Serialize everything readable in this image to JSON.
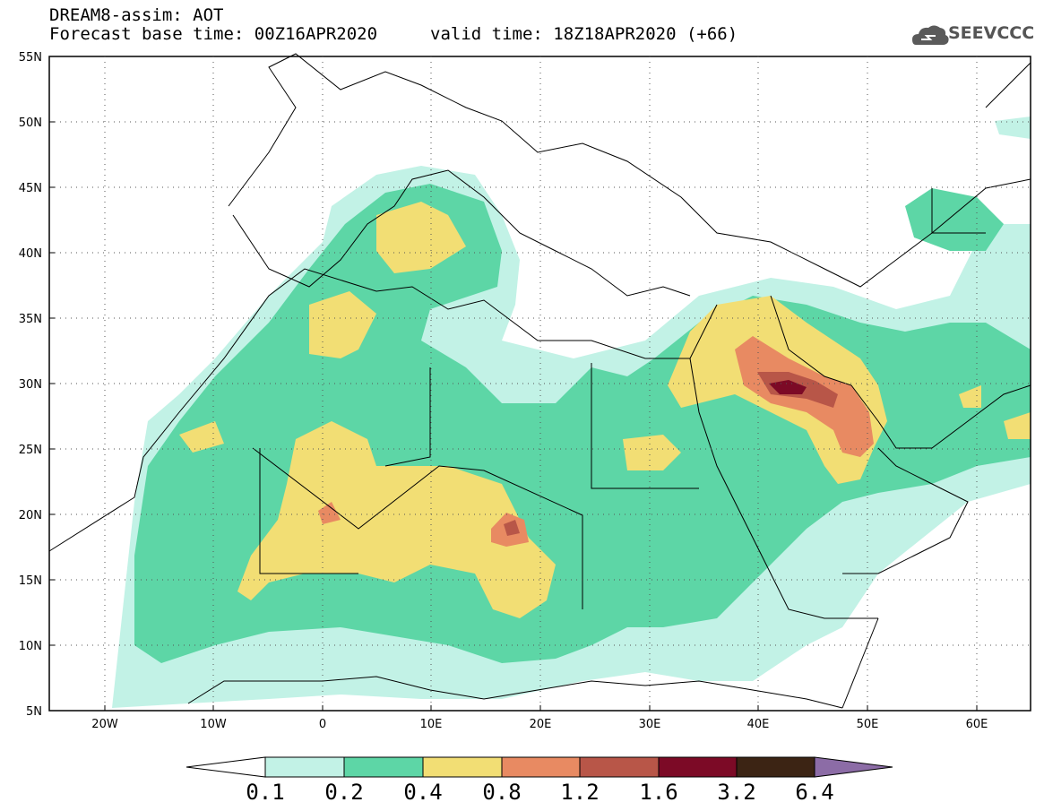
{
  "header": {
    "line1": "DREAM8-assim: AOT",
    "base_time_label": "Forecast base time: 00Z16APR2020",
    "valid_time_label": "valid time: 18Z18APR2020 (+66)"
  },
  "logo": {
    "text": "SEEVCCC",
    "icon": "cloud-icon"
  },
  "map": {
    "lon_range": [
      -25,
      65
    ],
    "lat_range": [
      5,
      55
    ],
    "y_ticks": [
      "55N",
      "50N",
      "45N",
      "40N",
      "35N",
      "30N",
      "25N",
      "20N",
      "15N",
      "10N",
      "5N"
    ],
    "x_ticks": [
      "20W",
      "10W",
      "0",
      "10E",
      "20E",
      "30E",
      "40E",
      "50E",
      "60E"
    ]
  },
  "colorbar": {
    "levels": [
      "0.1",
      "0.2",
      "0.4",
      "0.8",
      "1.2",
      "1.6",
      "3.2",
      "6.4"
    ],
    "colors": [
      "#c2f2e6",
      "#5dd6a6",
      "#f2de74",
      "#e88a62",
      "#b85648",
      "#7c0a26",
      "#3c2414",
      "#8c6ca6"
    ],
    "under_color": "#ffffff"
  }
}
